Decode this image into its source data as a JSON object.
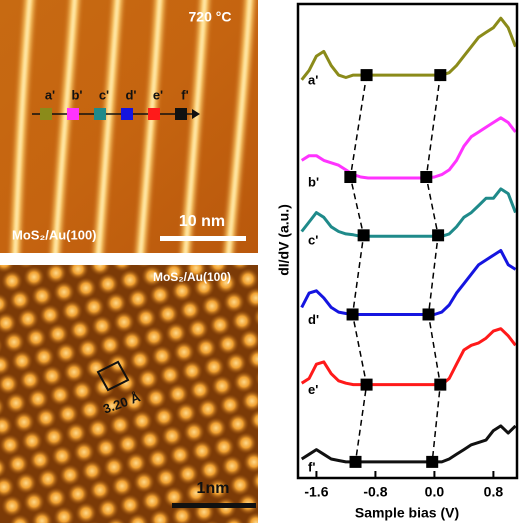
{
  "images": [
    {
      "temperature": "720 °C",
      "sample": "MoS₂/Au(100)",
      "scale_bar": "10 nm"
    },
    {
      "sample": "MoS₂/Au(100)",
      "scale_bar": "1nm",
      "lattice": "3.20 Å"
    }
  ],
  "chart_data": {
    "type": "line",
    "xlabel": "Sample bias (V)",
    "ylabel": "dI/dV (a.u.)",
    "xlim": [
      -1.85,
      1.12
    ],
    "ylim": [
      0,
      100
    ],
    "xticks": [
      -1.6,
      -0.8,
      {
        "value": 0,
        "label": "0.0"
      },
      0.8
    ],
    "x": [
      -1.8,
      -1.7,
      -1.6,
      -1.5,
      -1.4,
      -1.3,
      -1.2,
      -1.1,
      -1.0,
      -0.9,
      -0.8,
      -0.7,
      -0.6,
      -0.5,
      -0.4,
      -0.3,
      -0.2,
      -0.1,
      0.0,
      0.1,
      0.2,
      0.3,
      0.4,
      0.5,
      0.6,
      0.7,
      0.8,
      0.9,
      1.0,
      1.1
    ],
    "series": [
      {
        "name": "a'",
        "color": "#8b8b1a",
        "values": [
          84,
          86,
          89,
          90,
          87,
          85,
          84.5,
          85,
          85,
          85,
          85,
          85,
          85,
          85,
          85,
          85,
          85,
          85,
          85,
          85,
          85.5,
          87,
          89,
          91,
          93,
          94,
          95,
          97,
          95,
          91
        ],
        "edges": [
          -0.92,
          0.08
        ],
        "edge_values": [
          85,
          85
        ]
      },
      {
        "name": "b'",
        "color": "#ff33ff",
        "values": [
          67,
          68,
          68,
          67,
          66.5,
          66,
          65,
          64,
          63.5,
          63.3,
          63.3,
          63.3,
          63.3,
          63.3,
          63.3,
          63.3,
          63.3,
          63.3,
          63.5,
          64,
          65,
          67,
          70,
          72,
          73,
          74,
          75,
          76,
          75,
          73
        ],
        "edges": [
          -1.14,
          -0.11
        ],
        "edge_values": [
          63.5,
          63.5
        ]
      },
      {
        "name": "c'",
        "color": "#1f8a8a",
        "values": [
          52,
          54,
          56,
          55,
          53,
          52,
          51.5,
          51.3,
          51,
          51,
          51,
          51,
          51,
          51,
          51,
          51,
          51,
          51,
          51,
          51,
          51.5,
          53,
          55,
          56,
          57.5,
          59,
          59,
          61,
          60,
          56
        ],
        "edges": [
          -0.96,
          0.05
        ],
        "edge_values": [
          51.2,
          51.2
        ]
      },
      {
        "name": "d'",
        "color": "#1515e0",
        "values": [
          36,
          39,
          39.5,
          38,
          36,
          35,
          34.7,
          34.5,
          34.5,
          34.5,
          34.5,
          34.5,
          34.5,
          34.5,
          34.5,
          34.5,
          34.5,
          34.5,
          34.5,
          35,
          36.5,
          39,
          41,
          43,
          45,
          46,
          47,
          48,
          45,
          44
        ],
        "edges": [
          -1.11,
          -0.08
        ],
        "edge_values": [
          34.5,
          34.5
        ]
      },
      {
        "name": "e'",
        "color": "#ff1a1a",
        "values": [
          20,
          21,
          24,
          24.5,
          22,
          20.5,
          20,
          19.7,
          19.7,
          19.7,
          19.7,
          19.7,
          19.7,
          19.7,
          19.7,
          19.7,
          19.7,
          19.7,
          19.7,
          19.7,
          21,
          24,
          27,
          28,
          28.5,
          29.5,
          31,
          31.5,
          30,
          28
        ],
        "edges": [
          -0.92,
          0.08
        ],
        "edge_values": [
          19.7,
          19.7
        ]
      },
      {
        "name": "f'",
        "color": "#111111",
        "values": [
          4,
          5,
          6,
          5,
          4,
          3.7,
          3.4,
          3.4,
          3.4,
          3.4,
          3.4,
          3.4,
          3.4,
          3.4,
          3.4,
          3.4,
          3.4,
          3.4,
          3.4,
          3.4,
          4,
          5,
          6,
          7,
          7.5,
          8,
          10,
          11,
          9.5,
          11
        ],
        "edges": [
          -1.07,
          -0.03
        ],
        "edge_values": [
          3.4,
          3.4
        ]
      }
    ]
  }
}
